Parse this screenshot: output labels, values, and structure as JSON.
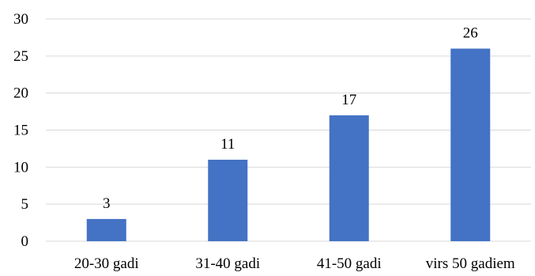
{
  "chart_data": {
    "type": "bar",
    "categories": [
      "20-30 gadi",
      "31-40 gadi",
      "41-50 gadi",
      "virs 50 gadiem"
    ],
    "values": [
      3,
      11,
      17,
      26
    ],
    "data_labels": [
      "3",
      "11",
      "17",
      "26"
    ],
    "y_ticks": [
      0,
      5,
      10,
      15,
      20,
      25,
      30
    ],
    "ylim": [
      0,
      30
    ],
    "grid": true,
    "legend": "none",
    "bar_color": "#4472C4",
    "grid_color": "#D9D9D9"
  }
}
